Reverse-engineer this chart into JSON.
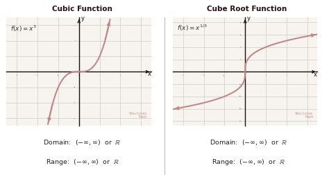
{
  "left_title": "Cubic Function",
  "right_title": "Cube Root Function",
  "left_formula": "$f(x) = x^3$",
  "right_formula": "$f(x) = x^{1/3}$",
  "domain_text": "Domain:  $(-\\infty,\\infty)$  or  $\\mathbb{R}$",
  "range_text": "Range:  $(-\\infty,\\infty)$  or  $\\mathbb{R}$",
  "header_bg": "#deb8b2",
  "panel_bg": "#f7f3ee",
  "curve_color": "#c08888",
  "axis_color": "#111111",
  "grid_color": "#d0cbc4",
  "outer_bg": "#ffffff",
  "divider_color": "#bbbbbb"
}
